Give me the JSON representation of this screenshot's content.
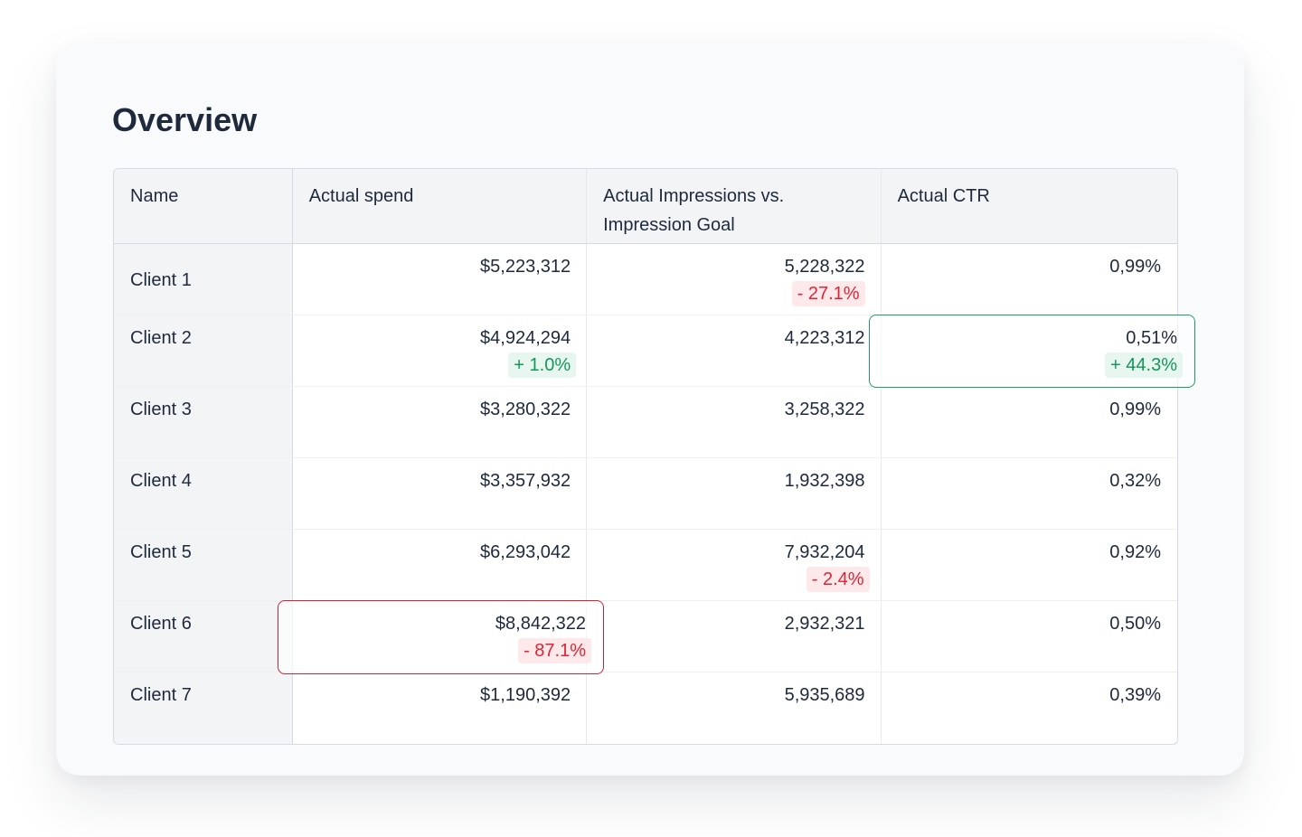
{
  "page": {
    "title": "Overview"
  },
  "table": {
    "headers": {
      "name": "Name",
      "spend": "Actual spend",
      "impressions_line1": "Actual Impressions vs.",
      "impressions_line2": "Impression Goal",
      "ctr": "Actual CTR"
    },
    "rows": [
      {
        "name": "Client 1",
        "spend": "$5,223,312",
        "spend_delta": "",
        "impressions": "5,228,322",
        "impressions_delta": "- 27.1%",
        "ctr": "0,99%",
        "ctr_delta": ""
      },
      {
        "name": "Client 2",
        "spend": "$4,924,294",
        "spend_delta": "+ 1.0%",
        "impressions": "4,223,312",
        "impressions_delta": "",
        "ctr": "0,51%",
        "ctr_delta": "+ 44.3%"
      },
      {
        "name": "Client 3",
        "spend": "$3,280,322",
        "spend_delta": "",
        "impressions": "3,258,322",
        "impressions_delta": "",
        "ctr": "0,99%",
        "ctr_delta": ""
      },
      {
        "name": "Client 4",
        "spend": "$3,357,932",
        "spend_delta": "",
        "impressions": "1,932,398",
        "impressions_delta": "",
        "ctr": "0,32%",
        "ctr_delta": ""
      },
      {
        "name": "Client 5",
        "spend": "$6,293,042",
        "spend_delta": "",
        "impressions": "7,932,204",
        "impressions_delta": "- 2.4%",
        "ctr": "0,92%",
        "ctr_delta": ""
      },
      {
        "name": "Client 6",
        "spend": "$8,842,322",
        "spend_delta": "- 87.1%",
        "impressions": "2,932,321",
        "impressions_delta": "",
        "ctr": "0,50%",
        "ctr_delta": ""
      },
      {
        "name": "Client 7",
        "spend": "$1,190,392",
        "spend_delta": "",
        "impressions": "5,935,689",
        "impressions_delta": "",
        "ctr": "0,39%",
        "ctr_delta": ""
      }
    ]
  },
  "colors": {
    "negative": "#dc2637",
    "negative_bg": "#fde8ea",
    "positive": "#16965b",
    "positive_bg": "#e7f6ee",
    "text": "#1e293b",
    "header_bg": "#f3f4f6"
  }
}
